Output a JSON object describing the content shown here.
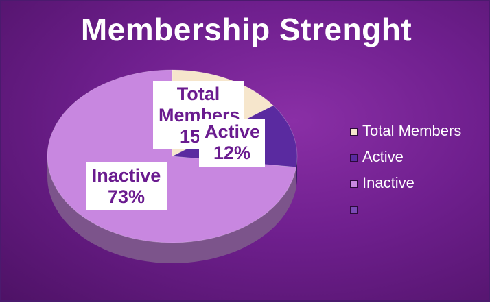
{
  "chart_data": {
    "type": "pie",
    "title": "Membership Strenght",
    "categories": [
      "Total Members",
      "Active",
      "Inactive",
      ""
    ],
    "values": [
      15,
      12,
      73,
      0
    ],
    "colors": [
      "#f6e6cc",
      "#5a2aa0",
      "#c887e0",
      "#7a4ab5"
    ],
    "data_labels": [
      {
        "name": "Total Members",
        "pct": "15%"
      },
      {
        "name": "Active",
        "pct": "12%"
      },
      {
        "name": "Inactive",
        "pct": "73%"
      }
    ],
    "legend": {
      "position": "right",
      "entries": [
        "Total Members",
        "Active",
        "Inactive",
        ""
      ]
    }
  }
}
